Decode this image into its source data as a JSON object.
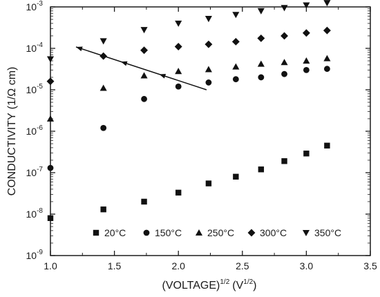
{
  "chart_data": {
    "type": "scatter",
    "xlabel": "(VOLTAGE)",
    "xlabel_sup1": "1/2",
    "xlabel_unit": "(V",
    "xlabel_sup2": "1/2",
    "xlabel_close": ")",
    "ylabel": "CONDUCTIVITY",
    "ylabel_unit": "(1/Ω cm)",
    "xlim": [
      1.0,
      3.5
    ],
    "ylim_log10": [
      -9,
      -3
    ],
    "y_scale": "log",
    "grid": false,
    "legend_position": "bottom",
    "x_ticks": [
      "1.0",
      "1.5",
      "2.0",
      "2.5",
      "3.0",
      "3.5"
    ],
    "x_tick_values": [
      1.0,
      1.5,
      2.0,
      2.5,
      3.0,
      3.5
    ],
    "y_ticks": [
      {
        "base": "10",
        "exp": "-3"
      },
      {
        "base": "10",
        "exp": "-4"
      },
      {
        "base": "10",
        "exp": "-5"
      },
      {
        "base": "10",
        "exp": "-6"
      },
      {
        "base": "10",
        "exp": "-7"
      },
      {
        "base": "10",
        "exp": "-8"
      },
      {
        "base": "10",
        "exp": "-9"
      }
    ],
    "y_tick_exponents": [
      -3,
      -4,
      -5,
      -6,
      -7,
      -8,
      -9
    ],
    "series": [
      {
        "name": "20°C",
        "marker": "square",
        "x": [
          1.0,
          1.414,
          1.732,
          2.0,
          2.236,
          2.449,
          2.646,
          2.828,
          3.0,
          3.162
        ],
        "y": [
          8e-09,
          1.3e-08,
          2e-08,
          3.3e-08,
          5.5e-08,
          8e-08,
          1.2e-07,
          1.9e-07,
          2.9e-07,
          4.5e-07
        ]
      },
      {
        "name": "150°C",
        "marker": "circle",
        "x": [
          1.0,
          1.414,
          1.732,
          2.0,
          2.236,
          2.449,
          2.646,
          2.828,
          3.0,
          3.162
        ],
        "y": [
          1.3e-07,
          1.2e-06,
          6e-06,
          1.2e-05,
          1.5e-05,
          1.8e-05,
          2e-05,
          2.4e-05,
          3e-05,
          3.2e-05
        ]
      },
      {
        "name": "250°C",
        "marker": "triangle-up",
        "x": [
          1.0,
          1.414,
          1.732,
          2.0,
          2.236,
          2.449,
          2.646,
          2.828,
          3.0,
          3.162
        ],
        "y": [
          2e-06,
          1.1e-05,
          2.2e-05,
          2.8e-05,
          3.1e-05,
          3.6e-05,
          4.2e-05,
          4.6e-05,
          5e-05,
          5.7e-05
        ]
      },
      {
        "name": "300°C",
        "marker": "diamond",
        "x": [
          1.0,
          1.414,
          1.732,
          2.0,
          2.236,
          2.449,
          2.646,
          2.828,
          3.0,
          3.162
        ],
        "y": [
          1.6e-05,
          6.5e-05,
          9e-05,
          0.00011,
          0.000125,
          0.000145,
          0.000175,
          0.0002,
          0.000235,
          0.00027
        ]
      },
      {
        "name": "350°C",
        "marker": "triangle-down",
        "x": [
          1.0,
          1.414,
          1.732,
          2.0,
          2.236,
          2.449,
          2.646,
          2.828,
          3.0,
          3.162
        ],
        "y": [
          5.5e-05,
          0.00015,
          0.00028,
          0.0004,
          0.00052,
          0.00065,
          0.0008,
          0.00095,
          0.0011,
          0.00125
        ]
      }
    ],
    "annotation_arrow": {
      "from": {
        "x": 2.22,
        "y": 1e-05
      },
      "to": {
        "x": 1.2,
        "y": 0.000108
      },
      "intermediate_arrowheads_x": [
        1.55,
        1.85
      ]
    }
  }
}
